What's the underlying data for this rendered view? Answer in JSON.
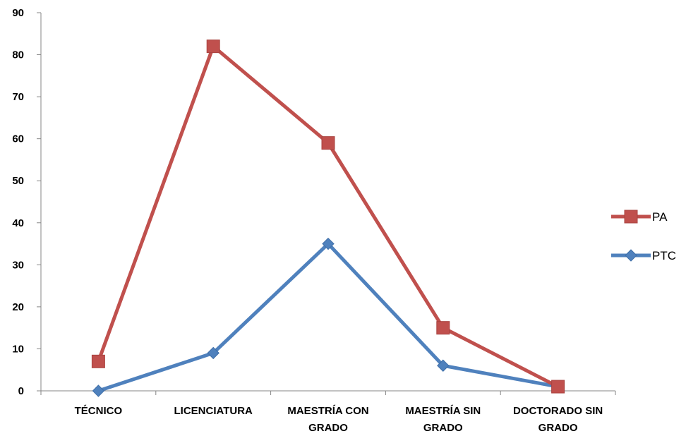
{
  "chart_data": {
    "type": "line",
    "title": "",
    "xlabel": "",
    "ylabel": "",
    "ylim": [
      0,
      90
    ],
    "yticks": [
      0,
      10,
      20,
      30,
      40,
      50,
      60,
      70,
      80,
      90
    ],
    "grid": false,
    "legend_position": "right",
    "categories": [
      [
        "TÉCNICO"
      ],
      [
        "LICENCIATURA"
      ],
      [
        "MAESTRÍA CON",
        "GRADO"
      ],
      [
        "MAESTRÍA SIN",
        "GRADO"
      ],
      [
        "DOCTORADO SIN",
        "GRADO"
      ]
    ],
    "series": [
      {
        "name": "PA",
        "values": [
          7,
          82,
          59,
          15,
          1
        ],
        "color": "#C0504D",
        "marker": "square"
      },
      {
        "name": "PTC",
        "values": [
          0,
          9,
          35,
          6,
          1
        ],
        "color": "#4F81BD",
        "marker": "diamond"
      }
    ]
  }
}
